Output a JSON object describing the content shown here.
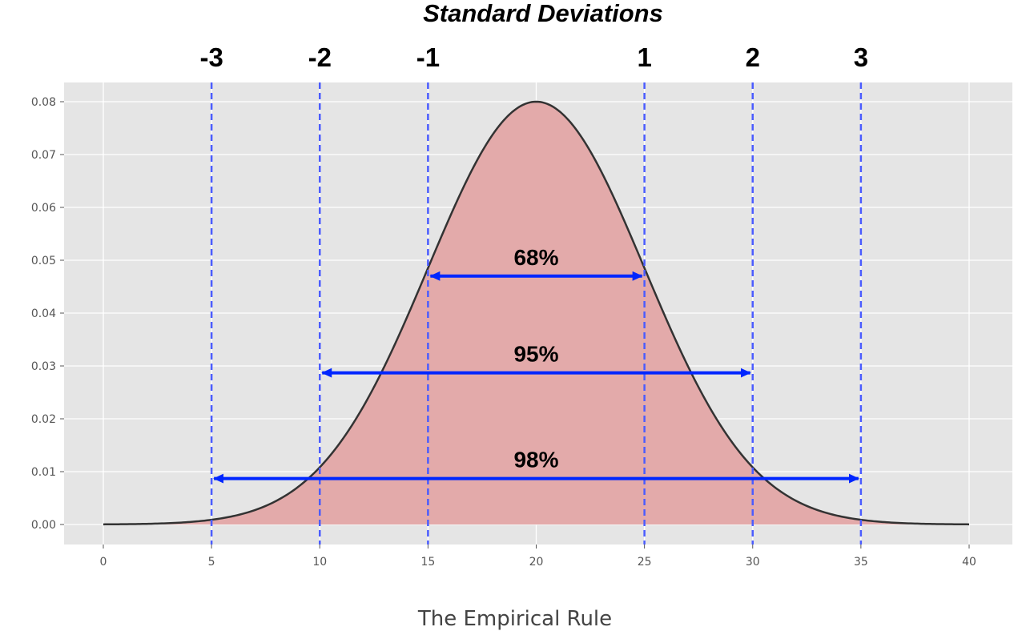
{
  "chart_data": {
    "type": "area",
    "title": "Standard Deviations",
    "caption": "The Empirical Rule",
    "mean": 20,
    "std": 5,
    "xlim": [
      0,
      40
    ],
    "ylim": [
      0,
      0.08
    ],
    "x_ticks": [
      0,
      5,
      10,
      15,
      20,
      25,
      30,
      35,
      40
    ],
    "y_ticks": [
      0.0,
      0.01,
      0.02,
      0.03,
      0.04,
      0.05,
      0.06,
      0.07,
      0.08
    ],
    "y_tick_labels": [
      "0.00",
      "0.01",
      "0.02",
      "0.03",
      "0.04",
      "0.05",
      "0.06",
      "0.07",
      "0.08"
    ],
    "sd_lines": [
      {
        "label": "-3",
        "x": 5
      },
      {
        "label": "-2",
        "x": 10
      },
      {
        "label": "-1",
        "x": 15
      },
      {
        "label": "1",
        "x": 25
      },
      {
        "label": "2",
        "x": 30
      },
      {
        "label": "3",
        "x": 35
      }
    ],
    "ranges": [
      {
        "label": "68%",
        "from": 15,
        "to": 25,
        "y": 0.047
      },
      {
        "label": "95%",
        "from": 10,
        "to": 30,
        "y": 0.0287
      },
      {
        "label": "98%",
        "from": 5,
        "to": 35,
        "y": 0.0087
      }
    ],
    "grid": true,
    "colors": {
      "background": "#e5e5e5",
      "fill": "#e3aaaa",
      "curve": "#333333",
      "sd_line": "#4b5cff",
      "arrow": "#0026ff"
    }
  }
}
